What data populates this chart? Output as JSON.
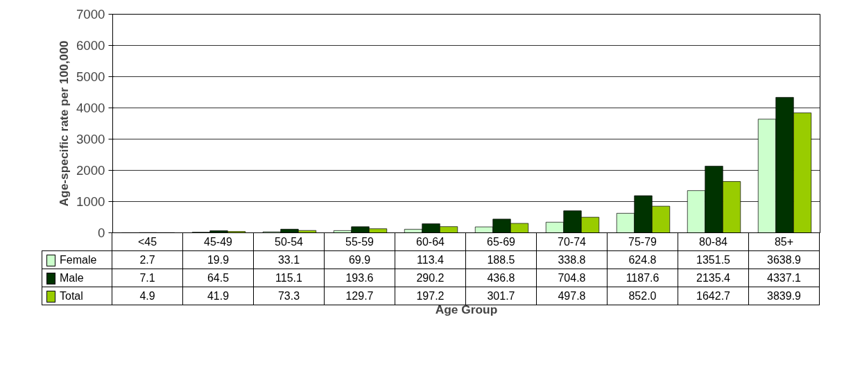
{
  "chart_data": {
    "type": "bar",
    "xlabel": "Age Group",
    "ylabel": "Age-specific rate per 100,000",
    "categories": [
      "<45",
      "45-49",
      "50-54",
      "55-59",
      "60-64",
      "65-69",
      "70-74",
      "75-79",
      "80-84",
      "85+"
    ],
    "series": [
      {
        "name": "Female",
        "color": "#ccffcc",
        "values": [
          2.7,
          19.9,
          33.1,
          69.9,
          113.4,
          188.5,
          338.8,
          624.8,
          1351.5,
          3638.9
        ],
        "value_labels": [
          "2.7",
          "19.9",
          "33.1",
          "69.9",
          "113.4",
          "188.5",
          "338.8",
          "624.8",
          "1351.5",
          "3638.9"
        ]
      },
      {
        "name": "Male",
        "color": "#003300",
        "values": [
          7.1,
          64.5,
          115.1,
          193.6,
          290.2,
          436.8,
          704.8,
          1187.6,
          2135.4,
          4337.1
        ],
        "value_labels": [
          "7.1",
          "64.5",
          "115.1",
          "193.6",
          "290.2",
          "436.8",
          "704.8",
          "1187.6",
          "2135.4",
          "4337.1"
        ]
      },
      {
        "name": "Total",
        "color": "#99cc00",
        "values": [
          4.9,
          41.9,
          73.3,
          129.7,
          197.2,
          301.7,
          497.8,
          852.0,
          1642.7,
          3839.9
        ],
        "value_labels": [
          "4.9",
          "41.9",
          "73.3",
          "129.7",
          "197.2",
          "301.7",
          "497.8",
          "852.0",
          "1642.7",
          "3839.9"
        ]
      }
    ],
    "ylim": [
      0,
      7000
    ],
    "yticks": [
      0,
      1000,
      2000,
      3000,
      4000,
      5000,
      6000,
      7000
    ],
    "grid": "y",
    "legend": "left"
  }
}
